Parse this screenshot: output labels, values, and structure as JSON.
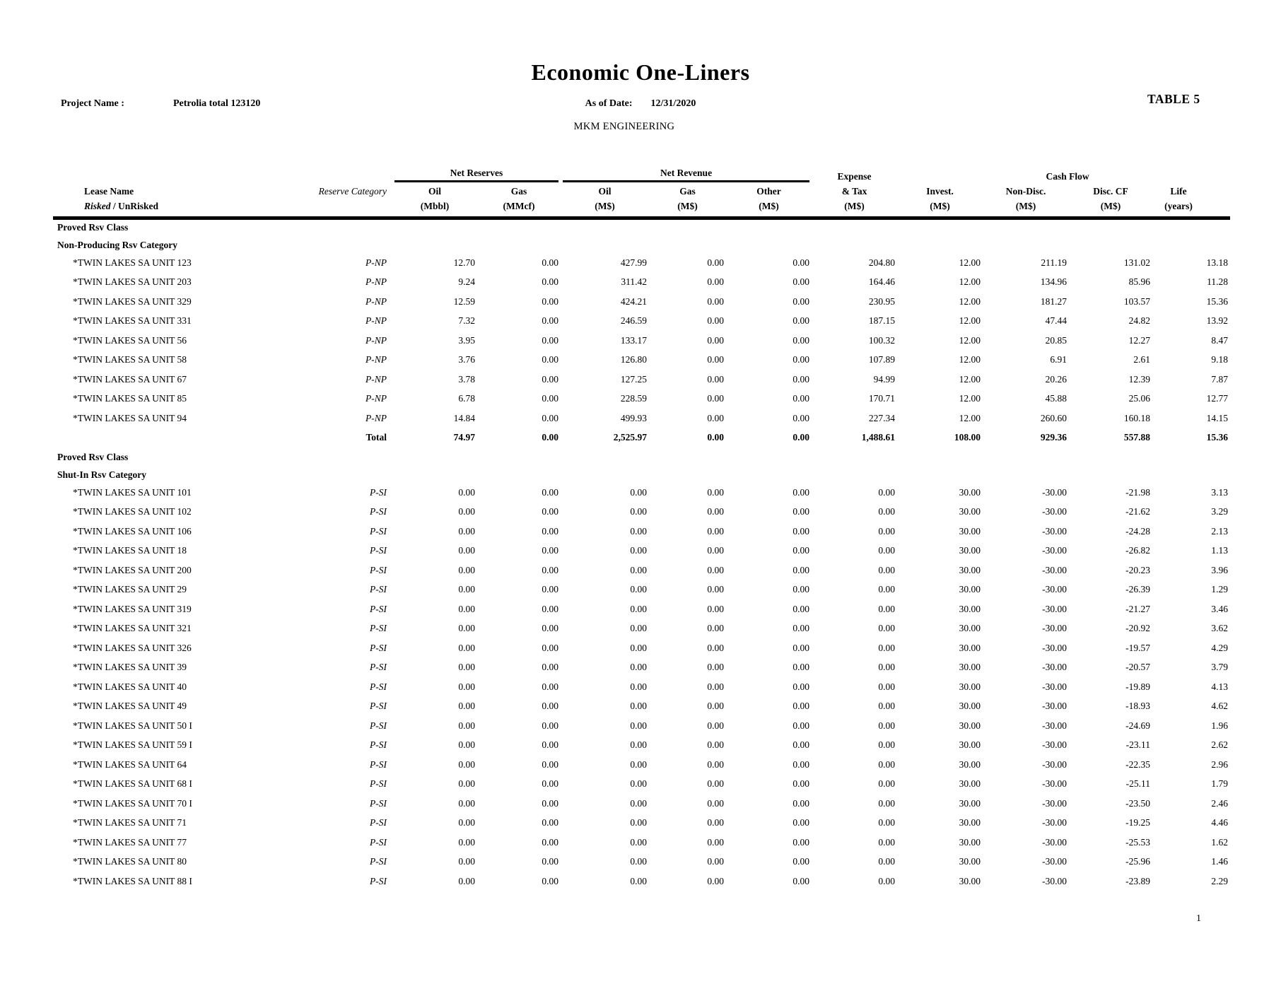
{
  "header": {
    "title": "Economic One-Liners",
    "table_label": "TABLE 5",
    "project_label": "Project Name :",
    "project_name": "Petrolia total 123120",
    "asof_label": "As of Date:",
    "asof_date": "12/31/2020",
    "company": "MKM ENGINEERING",
    "page_number": "1"
  },
  "table": {
    "groups": {
      "net_reserves": "Net Reserves",
      "net_revenue": "Net Revenue",
      "cash_flow": "Cash Flow"
    },
    "lease_header": {
      "line1": "Lease Name",
      "risked": "Risked",
      "unrisked": " / UnRisked"
    },
    "category_header": "Reserve Category",
    "total_label": "Total",
    "value_columns": [
      {
        "label": "Oil",
        "unit": "(Mbbl)"
      },
      {
        "label": "Gas",
        "unit": "(MMcf)"
      },
      {
        "label": "Oil",
        "unit": "(M$)"
      },
      {
        "label": "Gas",
        "unit": "(M$)"
      },
      {
        "label": "Other",
        "unit": "(M$)"
      },
      {
        "label": "Expense",
        "label2": "& Tax",
        "unit": "(M$)"
      },
      {
        "label": "Invest.",
        "unit": "(M$)"
      },
      {
        "label": "Non-Disc.",
        "unit": "(M$)"
      },
      {
        "label": "Disc. CF",
        "unit": "(M$)"
      },
      {
        "label": "Life",
        "unit": "(years)"
      }
    ],
    "sections": [
      {
        "class_header": "Proved Rsv Class",
        "category_header": "Non-Producing Rsv Category",
        "rows": [
          {
            "name": "*TWIN LAKES SA UNIT 123",
            "category": "P-NP",
            "values": [
              "12.70",
              "0.00",
              "427.99",
              "0.00",
              "0.00",
              "204.80",
              "12.00",
              "211.19",
              "131.02",
              "13.18"
            ]
          },
          {
            "name": "*TWIN LAKES SA UNIT 203",
            "category": "P-NP",
            "values": [
              "9.24",
              "0.00",
              "311.42",
              "0.00",
              "0.00",
              "164.46",
              "12.00",
              "134.96",
              "85.96",
              "11.28"
            ]
          },
          {
            "name": "*TWIN LAKES SA UNIT 329",
            "category": "P-NP",
            "values": [
              "12.59",
              "0.00",
              "424.21",
              "0.00",
              "0.00",
              "230.95",
              "12.00",
              "181.27",
              "103.57",
              "15.36"
            ]
          },
          {
            "name": "*TWIN LAKES SA UNIT 331",
            "category": "P-NP",
            "values": [
              "7.32",
              "0.00",
              "246.59",
              "0.00",
              "0.00",
              "187.15",
              "12.00",
              "47.44",
              "24.82",
              "13.92"
            ]
          },
          {
            "name": "*TWIN LAKES SA UNIT 56",
            "category": "P-NP",
            "values": [
              "3.95",
              "0.00",
              "133.17",
              "0.00",
              "0.00",
              "100.32",
              "12.00",
              "20.85",
              "12.27",
              "8.47"
            ]
          },
          {
            "name": "*TWIN LAKES SA UNIT 58",
            "category": "P-NP",
            "values": [
              "3.76",
              "0.00",
              "126.80",
              "0.00",
              "0.00",
              "107.89",
              "12.00",
              "6.91",
              "2.61",
              "9.18"
            ]
          },
          {
            "name": "*TWIN LAKES SA UNIT 67",
            "category": "P-NP",
            "values": [
              "3.78",
              "0.00",
              "127.25",
              "0.00",
              "0.00",
              "94.99",
              "12.00",
              "20.26",
              "12.39",
              "7.87"
            ]
          },
          {
            "name": "*TWIN LAKES SA UNIT 85",
            "category": "P-NP",
            "values": [
              "6.78",
              "0.00",
              "228.59",
              "0.00",
              "0.00",
              "170.71",
              "12.00",
              "45.88",
              "25.06",
              "12.77"
            ]
          },
          {
            "name": "*TWIN LAKES SA UNIT 94",
            "category": "P-NP",
            "values": [
              "14.84",
              "0.00",
              "499.93",
              "0.00",
              "0.00",
              "227.34",
              "12.00",
              "260.60",
              "160.18",
              "14.15"
            ]
          }
        ],
        "total": {
          "name": "",
          "category": "Total",
          "values": [
            "74.97",
            "0.00",
            "2,525.97",
            "0.00",
            "0.00",
            "1,488.61",
            "108.00",
            "929.36",
            "557.88",
            "15.36"
          ]
        }
      },
      {
        "class_header": "Proved Rsv Class",
        "category_header": "Shut-In Rsv Category",
        "rows": [
          {
            "name": "*TWIN LAKES SA UNIT 101",
            "category": "P-SI",
            "values": [
              "0.00",
              "0.00",
              "0.00",
              "0.00",
              "0.00",
              "0.00",
              "30.00",
              "-30.00",
              "-21.98",
              "3.13"
            ]
          },
          {
            "name": "*TWIN LAKES SA UNIT 102",
            "category": "P-SI",
            "values": [
              "0.00",
              "0.00",
              "0.00",
              "0.00",
              "0.00",
              "0.00",
              "30.00",
              "-30.00",
              "-21.62",
              "3.29"
            ]
          },
          {
            "name": "*TWIN LAKES SA UNIT 106",
            "category": "P-SI",
            "values": [
              "0.00",
              "0.00",
              "0.00",
              "0.00",
              "0.00",
              "0.00",
              "30.00",
              "-30.00",
              "-24.28",
              "2.13"
            ]
          },
          {
            "name": "*TWIN LAKES SA UNIT 18",
            "category": "P-SI",
            "values": [
              "0.00",
              "0.00",
              "0.00",
              "0.00",
              "0.00",
              "0.00",
              "30.00",
              "-30.00",
              "-26.82",
              "1.13"
            ]
          },
          {
            "name": "*TWIN LAKES SA UNIT 200",
            "category": "P-SI",
            "values": [
              "0.00",
              "0.00",
              "0.00",
              "0.00",
              "0.00",
              "0.00",
              "30.00",
              "-30.00",
              "-20.23",
              "3.96"
            ]
          },
          {
            "name": "*TWIN LAKES SA UNIT 29",
            "category": "P-SI",
            "values": [
              "0.00",
              "0.00",
              "0.00",
              "0.00",
              "0.00",
              "0.00",
              "30.00",
              "-30.00",
              "-26.39",
              "1.29"
            ]
          },
          {
            "name": "*TWIN LAKES SA UNIT 319",
            "category": "P-SI",
            "values": [
              "0.00",
              "0.00",
              "0.00",
              "0.00",
              "0.00",
              "0.00",
              "30.00",
              "-30.00",
              "-21.27",
              "3.46"
            ]
          },
          {
            "name": "*TWIN LAKES SA UNIT 321",
            "category": "P-SI",
            "values": [
              "0.00",
              "0.00",
              "0.00",
              "0.00",
              "0.00",
              "0.00",
              "30.00",
              "-30.00",
              "-20.92",
              "3.62"
            ]
          },
          {
            "name": "*TWIN LAKES SA UNIT 326",
            "category": "P-SI",
            "values": [
              "0.00",
              "0.00",
              "0.00",
              "0.00",
              "0.00",
              "0.00",
              "30.00",
              "-30.00",
              "-19.57",
              "4.29"
            ]
          },
          {
            "name": "*TWIN LAKES SA UNIT 39",
            "category": "P-SI",
            "values": [
              "0.00",
              "0.00",
              "0.00",
              "0.00",
              "0.00",
              "0.00",
              "30.00",
              "-30.00",
              "-20.57",
              "3.79"
            ]
          },
          {
            "name": "*TWIN LAKES SA UNIT 40",
            "category": "P-SI",
            "values": [
              "0.00",
              "0.00",
              "0.00",
              "0.00",
              "0.00",
              "0.00",
              "30.00",
              "-30.00",
              "-19.89",
              "4.13"
            ]
          },
          {
            "name": "*TWIN LAKES SA UNIT 49",
            "category": "P-SI",
            "values": [
              "0.00",
              "0.00",
              "0.00",
              "0.00",
              "0.00",
              "0.00",
              "30.00",
              "-30.00",
              "-18.93",
              "4.62"
            ]
          },
          {
            "name": "*TWIN LAKES SA UNIT 50 I",
            "category": "P-SI",
            "values": [
              "0.00",
              "0.00",
              "0.00",
              "0.00",
              "0.00",
              "0.00",
              "30.00",
              "-30.00",
              "-24.69",
              "1.96"
            ]
          },
          {
            "name": "*TWIN LAKES SA UNIT 59 I",
            "category": "P-SI",
            "values": [
              "0.00",
              "0.00",
              "0.00",
              "0.00",
              "0.00",
              "0.00",
              "30.00",
              "-30.00",
              "-23.11",
              "2.62"
            ]
          },
          {
            "name": "*TWIN LAKES SA UNIT 64",
            "category": "P-SI",
            "values": [
              "0.00",
              "0.00",
              "0.00",
              "0.00",
              "0.00",
              "0.00",
              "30.00",
              "-30.00",
              "-22.35",
              "2.96"
            ]
          },
          {
            "name": "*TWIN LAKES SA UNIT 68 I",
            "category": "P-SI",
            "values": [
              "0.00",
              "0.00",
              "0.00",
              "0.00",
              "0.00",
              "0.00",
              "30.00",
              "-30.00",
              "-25.11",
              "1.79"
            ]
          },
          {
            "name": "*TWIN LAKES SA UNIT 70 I",
            "category": "P-SI",
            "values": [
              "0.00",
              "0.00",
              "0.00",
              "0.00",
              "0.00",
              "0.00",
              "30.00",
              "-30.00",
              "-23.50",
              "2.46"
            ]
          },
          {
            "name": "*TWIN LAKES SA UNIT 71",
            "category": "P-SI",
            "values": [
              "0.00",
              "0.00",
              "0.00",
              "0.00",
              "0.00",
              "0.00",
              "30.00",
              "-30.00",
              "-19.25",
              "4.46"
            ]
          },
          {
            "name": "*TWIN LAKES SA UNIT 77",
            "category": "P-SI",
            "values": [
              "0.00",
              "0.00",
              "0.00",
              "0.00",
              "0.00",
              "0.00",
              "30.00",
              "-30.00",
              "-25.53",
              "1.62"
            ]
          },
          {
            "name": "*TWIN LAKES SA UNIT 80",
            "category": "P-SI",
            "values": [
              "0.00",
              "0.00",
              "0.00",
              "0.00",
              "0.00",
              "0.00",
              "30.00",
              "-30.00",
              "-25.96",
              "1.46"
            ]
          },
          {
            "name": "*TWIN LAKES SA UNIT 88 I",
            "category": "P-SI",
            "values": [
              "0.00",
              "0.00",
              "0.00",
              "0.00",
              "0.00",
              "0.00",
              "30.00",
              "-30.00",
              "-23.89",
              "2.29"
            ]
          }
        ],
        "total": null
      }
    ]
  }
}
